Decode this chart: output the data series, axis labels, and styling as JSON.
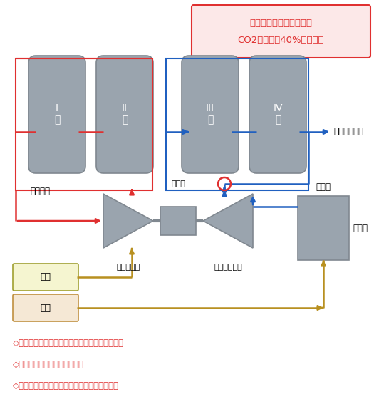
{
  "title_line1": "従来プロセスと比較して",
  "title_line2": "CO2排出量を40%以上削減",
  "red_color": "#e03030",
  "blue_color": "#2060c0",
  "gold_color": "#b89020",
  "tower_color": "#9aa4ae",
  "tower_edge": "#808890",
  "motor_color": "#9aa4ae",
  "boiler_color": "#9aa4ae",
  "note_bg_color": "#fce8e8",
  "note_edge_color": "#e03030",
  "elec_bg": "#f5f5d0",
  "elec_edge": "#a0a030",
  "fuel_bg": "#f5e8d5",
  "fuel_edge": "#c09040",
  "note_lines": [
    "◇電気エネルギーを利用して、廃熱から衉気回収",
    "◇ボイラ運転台数（燃料）削減",
    "◇更に衉気で動力を回収し、電気使用量も削減"
  ],
  "tower_labels": [
    "I\n塔",
    "II\n塔",
    "III\n塔",
    "IV\n塔"
  ],
  "compressor_label": "衉気圧縮機",
  "turbine_label": "衉気タービン",
  "motor_label": "電動機",
  "steam_user_label": "衉気ユーザー",
  "water_steam_label": "水衉気",
  "boiler_label": "ボイラ",
  "recover_steam_label": "回収衉気",
  "elec_label": "電気",
  "fuel_label": "燃料"
}
